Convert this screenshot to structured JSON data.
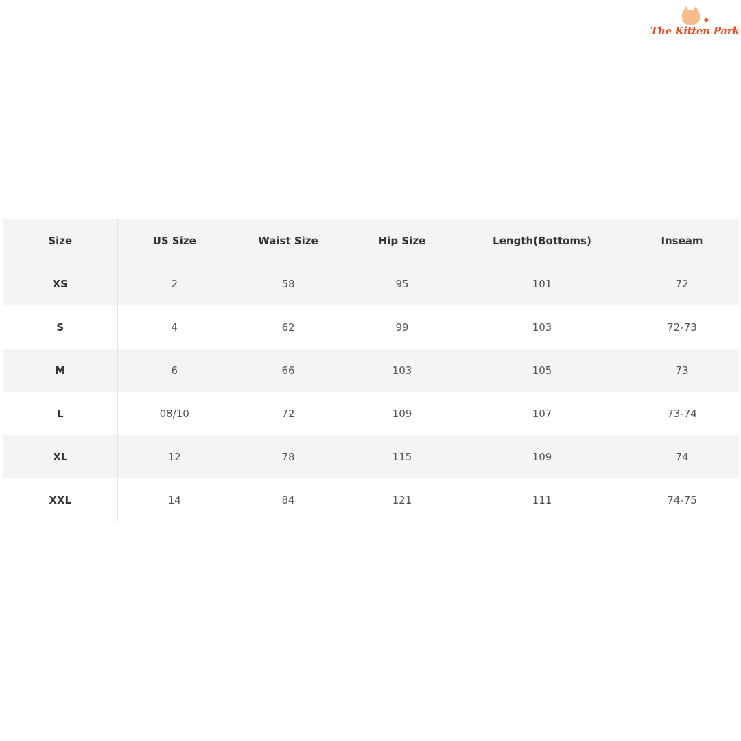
{
  "logo": {
    "text": "The Kitten Park",
    "color": "#ef4a1e"
  },
  "table": {
    "headers": [
      "Size",
      "US Size",
      "Waist Size",
      "Hip Size",
      "Length(Bottoms)",
      "Inseam"
    ],
    "rows": [
      [
        "XS",
        "2",
        "58",
        "95",
        "101",
        "72"
      ],
      [
        "S",
        "4",
        "62",
        "99",
        "103",
        "72-73"
      ],
      [
        "M",
        "6",
        "66",
        "103",
        "105",
        "73"
      ],
      [
        "L",
        "08/10",
        "72",
        "109",
        "107",
        "73-74"
      ],
      [
        "XL",
        "12",
        "78",
        "115",
        "109",
        "74"
      ],
      [
        "XXL",
        "14",
        "84",
        "121",
        "111",
        "74-75"
      ]
    ]
  }
}
